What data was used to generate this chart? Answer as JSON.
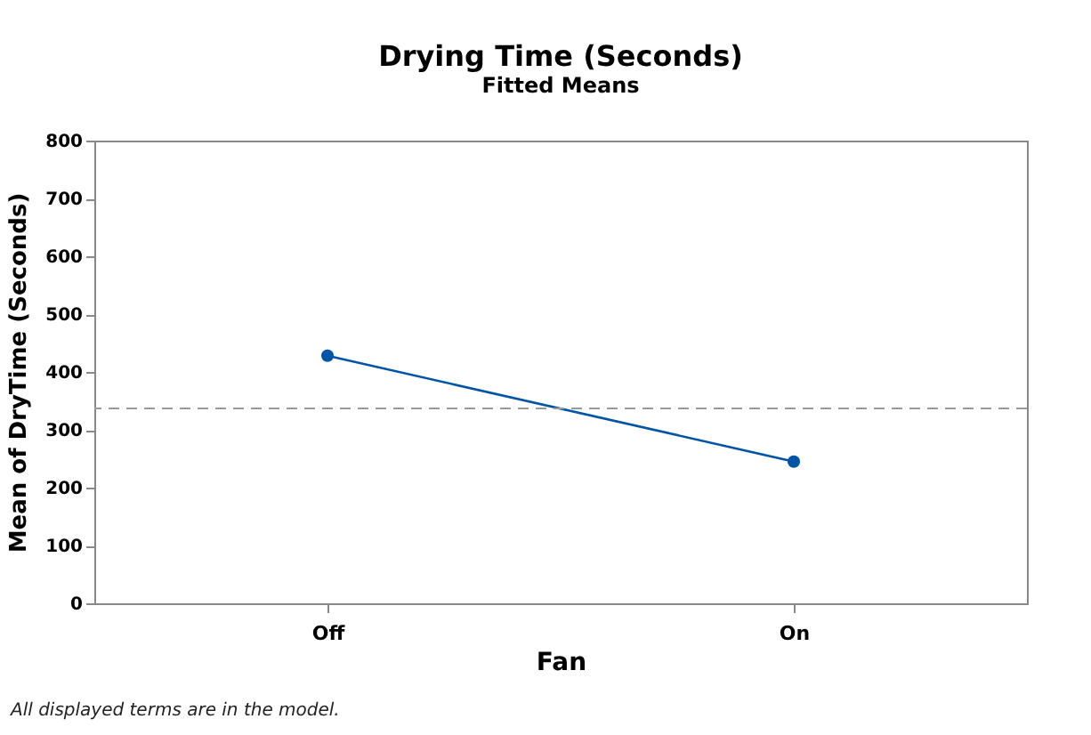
{
  "chart_data": {
    "type": "line",
    "title": "Drying Time (Seconds)",
    "subtitle": "Fitted Means",
    "xlabel": "Fan",
    "ylabel": "Mean of DryTime (Seconds)",
    "categories": [
      "Off",
      "On"
    ],
    "series": [
      {
        "color": "#0054a6",
        "values": [
          428,
          245
        ]
      }
    ],
    "ylim": [
      0,
      800
    ],
    "yticks": [
      0,
      100,
      200,
      300,
      400,
      500,
      600,
      700,
      800
    ],
    "ref_lines": [
      {
        "axis": "y",
        "value": 337,
        "color": "#999999",
        "line_style": "dashed"
      }
    ],
    "marker": "circle",
    "grid": false,
    "annotations": [
      "All displayed terms are in the model."
    ]
  }
}
